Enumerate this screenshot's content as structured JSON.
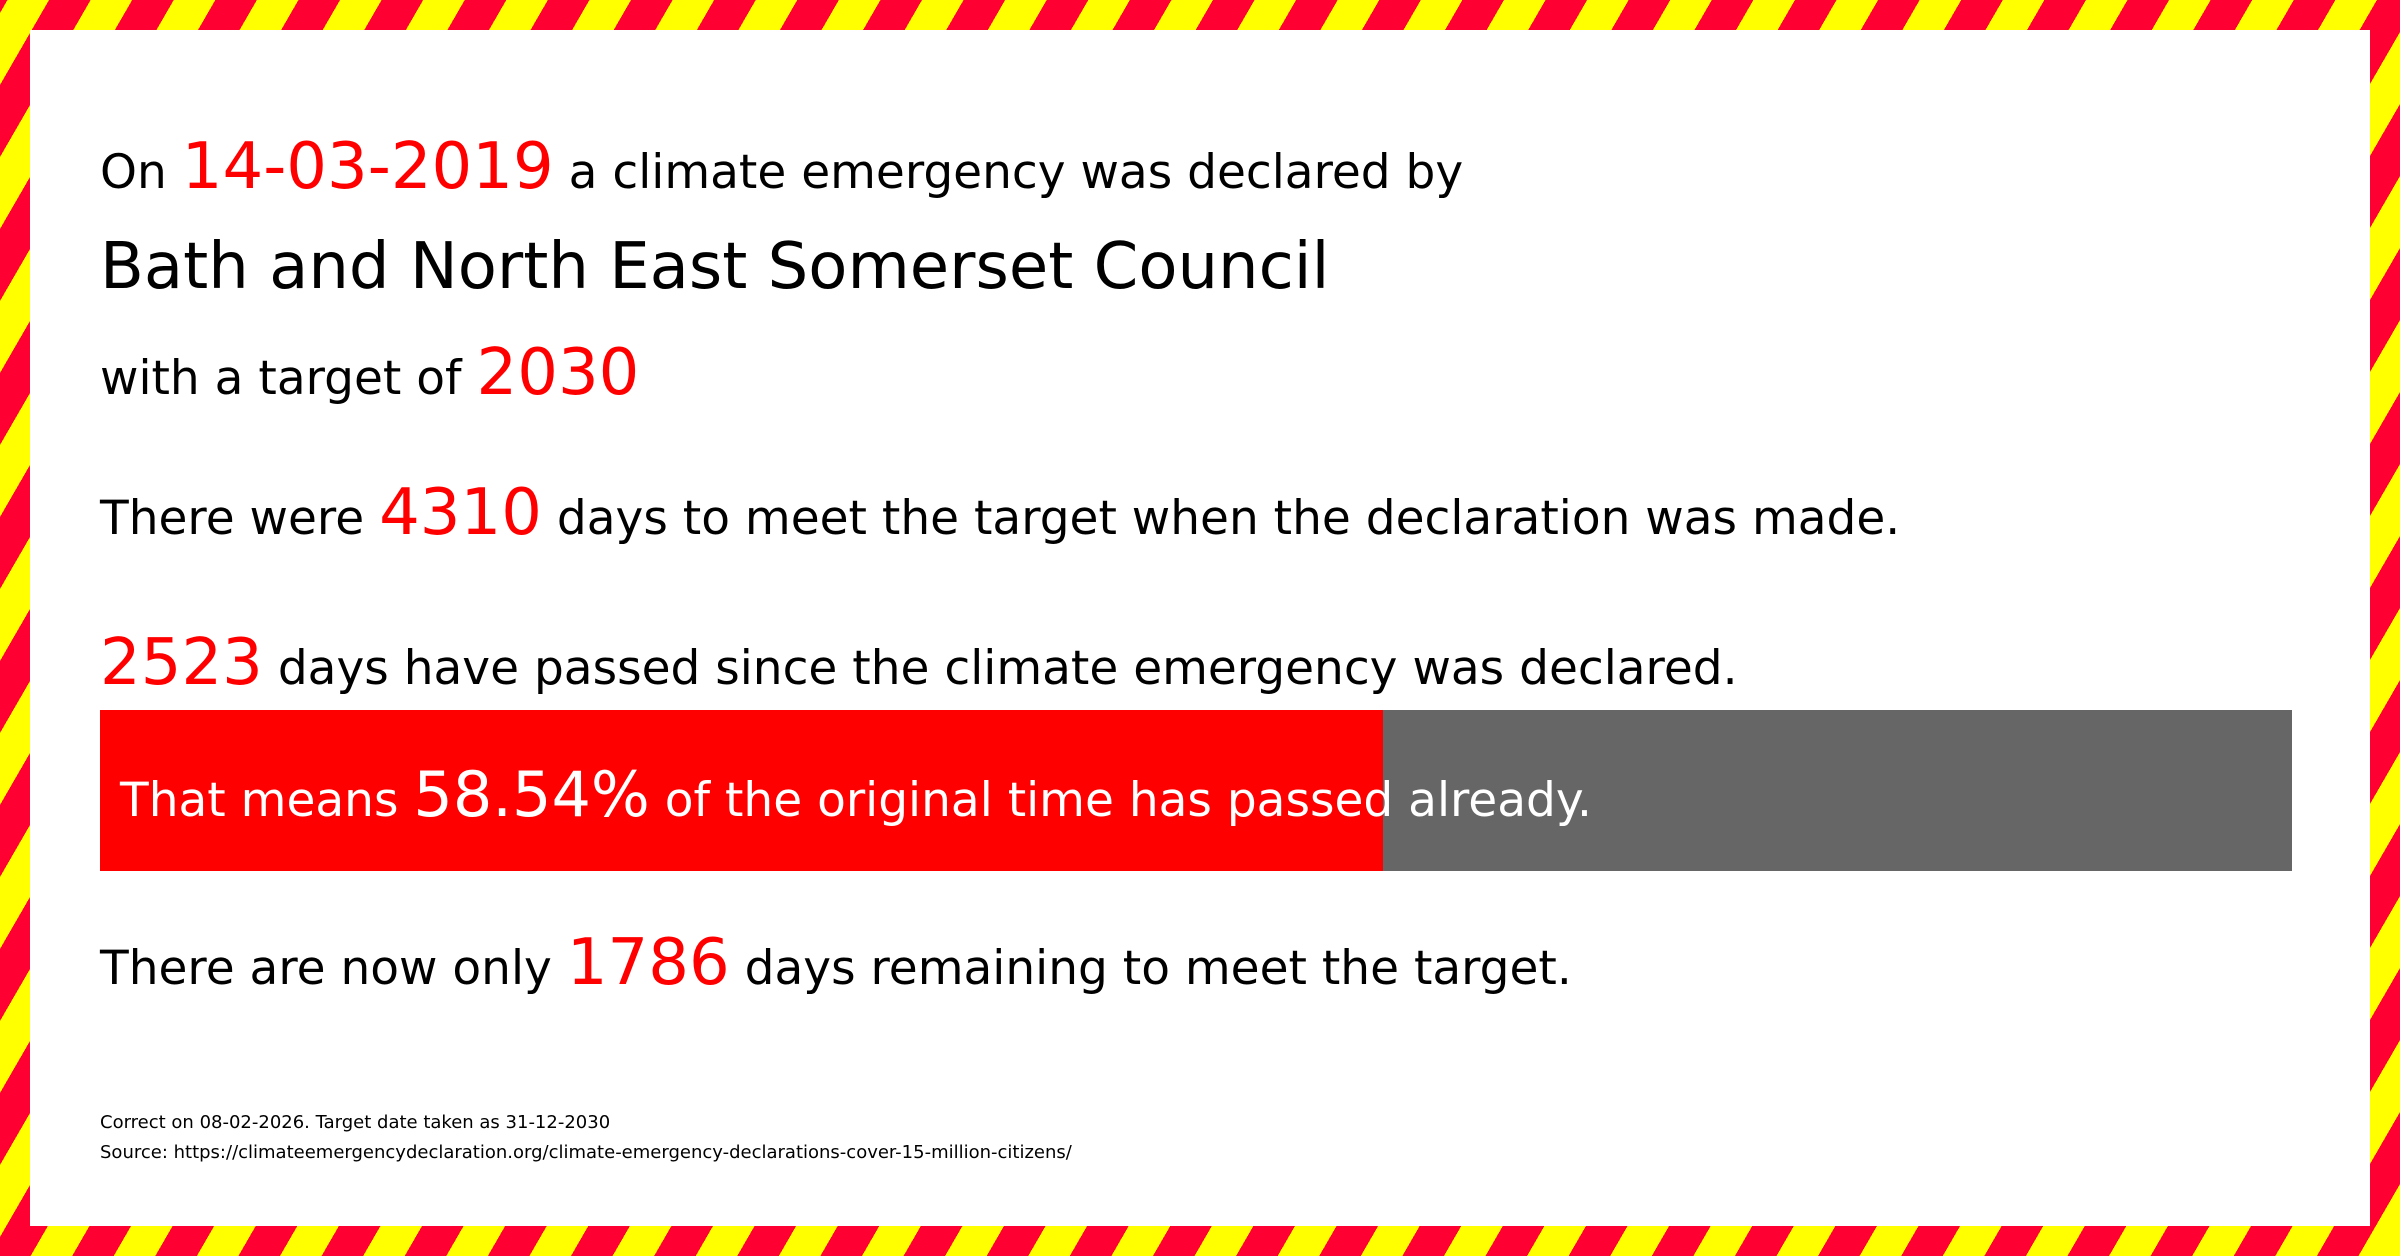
{
  "colors": {
    "accent": "#ff0000",
    "stripe_red": "#ff0033",
    "stripe_yellow": "#ffff00",
    "bar_remaining": "#666666"
  },
  "line1": {
    "prefix": "On",
    "date": "14-03-2019",
    "suffix": "a climate emergency was declared by"
  },
  "council": "Bath and North East Somerset Council",
  "line3": {
    "prefix": "with a target of",
    "target": "2030"
  },
  "line4": {
    "prefix": "There were",
    "days": "4310",
    "suffix": "days to meet the target when the declaration was made."
  },
  "line5": {
    "days": "2523",
    "suffix": "days have passed since the climate emergency was declared."
  },
  "progress": {
    "percent": 58.54,
    "prefix": "That means",
    "value": "58.54%",
    "suffix": "of the original time has passed already."
  },
  "line6": {
    "prefix": "There are now only",
    "days": "1786",
    "suffix": "days remaining to meet the target."
  },
  "footer": {
    "correct": "Correct on 08-02-2026. Target date taken as 31-12-2030",
    "source": "Source: https://climateemergencydeclaration.org/climate-emergency-declarations-cover-15-million-citizens/"
  }
}
